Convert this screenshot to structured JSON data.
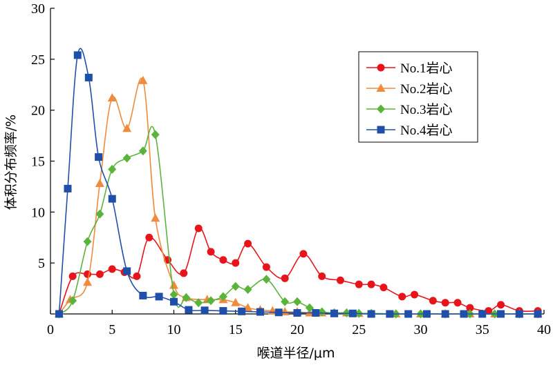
{
  "chart_data": {
    "type": "line",
    "xlabel": "喉道半径/μm",
    "ylabel": "体积分布频率/%",
    "xlim": [
      0,
      40
    ],
    "ylim": [
      0,
      30
    ],
    "xticks": [
      "0",
      "5",
      "10",
      "15",
      "20",
      "25",
      "30",
      "35",
      "40"
    ],
    "yticks": [
      "5",
      "10",
      "15",
      "20",
      "25",
      "30"
    ],
    "grid": false,
    "legend_position": "top-right",
    "series": [
      {
        "name": "No.1岩心",
        "color": "#e8141c",
        "marker": "circle",
        "points": [
          [
            0.7,
            0
          ],
          [
            1.8,
            3.7
          ],
          [
            3,
            3.9
          ],
          [
            4,
            3.9
          ],
          [
            5,
            4.4
          ],
          [
            6,
            4.1
          ],
          [
            7,
            3.7
          ],
          [
            8,
            7.5
          ],
          [
            9.5,
            5.3
          ],
          [
            10.8,
            4
          ],
          [
            12,
            8.4
          ],
          [
            13,
            6.1
          ],
          [
            14,
            5.3
          ],
          [
            15,
            5
          ],
          [
            16,
            6.9
          ],
          [
            17.5,
            4.6
          ],
          [
            19,
            3.5
          ],
          [
            20.5,
            5.9
          ],
          [
            22,
            3.7
          ],
          [
            23.5,
            3.3
          ],
          [
            25,
            2.9
          ],
          [
            26,
            2.9
          ],
          [
            27,
            2.6
          ],
          [
            28.5,
            1.7
          ],
          [
            29.5,
            1.9
          ],
          [
            31,
            1.3
          ],
          [
            32,
            1.1
          ],
          [
            33,
            1.1
          ],
          [
            34,
            0.6
          ],
          [
            35.5,
            0.3
          ],
          [
            36.5,
            0.9
          ],
          [
            38,
            0.3
          ],
          [
            39.5,
            0.3
          ]
        ]
      },
      {
        "name": "No.2岩心",
        "color": "#f08a3c",
        "marker": "triangle",
        "points": [
          [
            0.7,
            0
          ],
          [
            1.6,
            1.4
          ],
          [
            3,
            3.1
          ],
          [
            4,
            12.8
          ],
          [
            5,
            21.2
          ],
          [
            6.2,
            18.2
          ],
          [
            7.5,
            22.9
          ],
          [
            8.5,
            9.4
          ],
          [
            10,
            2.8
          ],
          [
            11,
            1.6
          ],
          [
            12.7,
            1.4
          ],
          [
            14,
            1.4
          ],
          [
            15,
            1.1
          ],
          [
            16,
            0.6
          ],
          [
            17,
            0.4
          ],
          [
            18,
            0.3
          ],
          [
            19,
            0.2
          ],
          [
            20,
            0.2
          ],
          [
            21,
            0.1
          ],
          [
            22,
            0.1
          ],
          [
            23,
            0.1
          ],
          [
            24,
            0.1
          ],
          [
            25,
            0.05
          ],
          [
            26,
            0.05
          ],
          [
            28,
            0
          ],
          [
            30,
            0
          ],
          [
            32,
            0
          ],
          [
            34,
            0
          ],
          [
            36,
            0
          ],
          [
            38,
            0
          ],
          [
            39.5,
            0
          ]
        ]
      },
      {
        "name": "No.3岩心",
        "color": "#5ab43c",
        "marker": "diamond",
        "points": [
          [
            0.7,
            0
          ],
          [
            1.8,
            1.3
          ],
          [
            3,
            7.1
          ],
          [
            4,
            9.8
          ],
          [
            5,
            14.2
          ],
          [
            6.2,
            15.3
          ],
          [
            7.5,
            16
          ],
          [
            8.5,
            17.6
          ],
          [
            10,
            1.9
          ],
          [
            11,
            1.6
          ],
          [
            12,
            1.1
          ],
          [
            13,
            1.3
          ],
          [
            14,
            1.7
          ],
          [
            15,
            2.7
          ],
          [
            16,
            2.4
          ],
          [
            17.5,
            3.4
          ],
          [
            19,
            1.2
          ],
          [
            20,
            1.2
          ],
          [
            21,
            0.6
          ],
          [
            22,
            0.2
          ],
          [
            23,
            0.1
          ],
          [
            24,
            0.1
          ],
          [
            25,
            0.05
          ],
          [
            26,
            0.05
          ],
          [
            28,
            0
          ],
          [
            30,
            0
          ],
          [
            32,
            0
          ],
          [
            34,
            0
          ],
          [
            36,
            0
          ],
          [
            38,
            0
          ],
          [
            39.5,
            0
          ]
        ]
      },
      {
        "name": "No.4岩心",
        "color": "#1f4fa8",
        "marker": "square",
        "points": [
          [
            0.7,
            0
          ],
          [
            1.4,
            12.3
          ],
          [
            2.2,
            25.4
          ],
          [
            3.1,
            23.2
          ],
          [
            3.9,
            15.4
          ],
          [
            5,
            11.3
          ],
          [
            6.2,
            4.2
          ],
          [
            7.5,
            1.8
          ],
          [
            8.8,
            1.7
          ],
          [
            10,
            1.2
          ],
          [
            11.2,
            0.4
          ],
          [
            12.5,
            0.35
          ],
          [
            14,
            0.3
          ],
          [
            15.5,
            0.25
          ],
          [
            17,
            0.2
          ],
          [
            18.5,
            0.15
          ],
          [
            20,
            0.1
          ],
          [
            21.5,
            0.1
          ],
          [
            23,
            0.05
          ],
          [
            24.5,
            0.05
          ],
          [
            26,
            0
          ],
          [
            27.5,
            0
          ],
          [
            29,
            0
          ],
          [
            30.5,
            0
          ],
          [
            32,
            0
          ],
          [
            33.5,
            0
          ],
          [
            35,
            0
          ],
          [
            36.5,
            0
          ],
          [
            38,
            0
          ],
          [
            39.5,
            0
          ]
        ]
      }
    ]
  }
}
